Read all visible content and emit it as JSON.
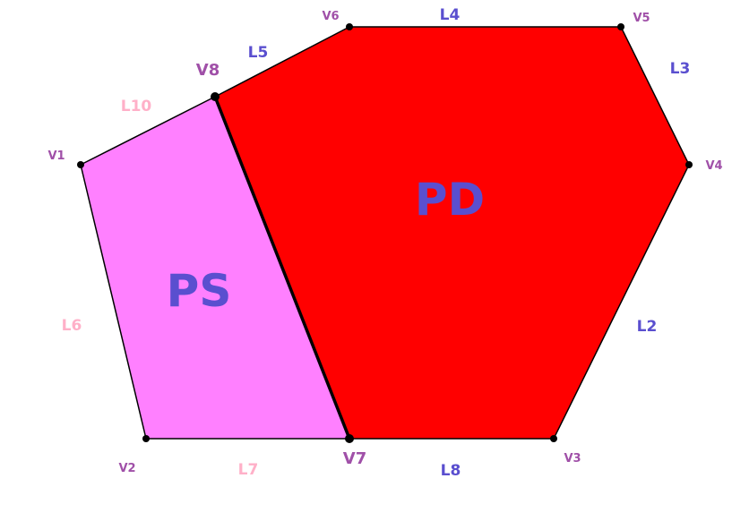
{
  "colors": {
    "pd_fill": "#ff0000",
    "ps_fill": "#ff80ff",
    "outline": "#000000",
    "vertex_label": "#a050a8",
    "edge_label_blue": "#5a4fcf",
    "edge_label_pink": "#ffb0c8",
    "region_label": "#5a4fcf"
  },
  "regions": {
    "pd": {
      "label": "PD"
    },
    "ps": {
      "label": "PS"
    }
  },
  "vertices": {
    "v1": {
      "label": "V1"
    },
    "v2": {
      "label": "V2"
    },
    "v3": {
      "label": "V3"
    },
    "v4": {
      "label": "V4"
    },
    "v5": {
      "label": "V5"
    },
    "v6": {
      "label": "V6"
    },
    "v7": {
      "label": "V7"
    },
    "v8": {
      "label": "V8"
    }
  },
  "edges": {
    "l2": {
      "label": "L2"
    },
    "l3": {
      "label": "L3"
    },
    "l4": {
      "label": "L4"
    },
    "l5": {
      "label": "L5"
    },
    "l6": {
      "label": "L6"
    },
    "l7": {
      "label": "L7"
    },
    "l8": {
      "label": "L8"
    },
    "l10": {
      "label": "L10"
    }
  }
}
